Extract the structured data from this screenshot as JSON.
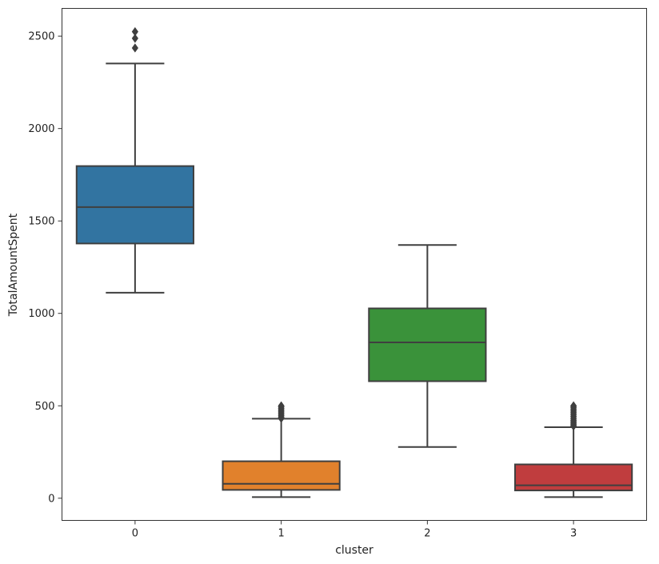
{
  "chart_data": {
    "type": "boxplot",
    "xlabel": "cluster",
    "ylabel": "TotalAmountSpent",
    "ylim": [
      -120,
      2650
    ],
    "yticks": [
      0,
      500,
      1000,
      1500,
      2000,
      2500
    ],
    "categories": [
      "0",
      "1",
      "2",
      "3"
    ],
    "boxes": [
      {
        "category": "0",
        "color": "#3274A1",
        "whisker_low": 1112,
        "q1": 1378,
        "median": 1575,
        "q3": 1797,
        "whisker_high": 2352,
        "outliers": [
          2436,
          2488,
          2524
        ]
      },
      {
        "category": "1",
        "color": "#E1812C",
        "whisker_low": 6,
        "q1": 45,
        "median": 78,
        "q3": 200,
        "whisker_high": 430,
        "outliers": [
          432,
          438,
          446,
          454,
          462,
          470,
          478,
          486,
          494,
          500
        ]
      },
      {
        "category": "2",
        "color": "#3A923A",
        "whisker_low": 277,
        "q1": 633,
        "median": 843,
        "q3": 1027,
        "whisker_high": 1370,
        "outliers": []
      },
      {
        "category": "3",
        "color": "#C03D3E",
        "whisker_low": 6,
        "q1": 42,
        "median": 70,
        "q3": 183,
        "whisker_high": 384,
        "outliers": [
          390,
          398,
          406,
          414,
          422,
          432,
          442,
          452,
          462,
          472,
          482,
          492,
          500
        ]
      }
    ]
  }
}
